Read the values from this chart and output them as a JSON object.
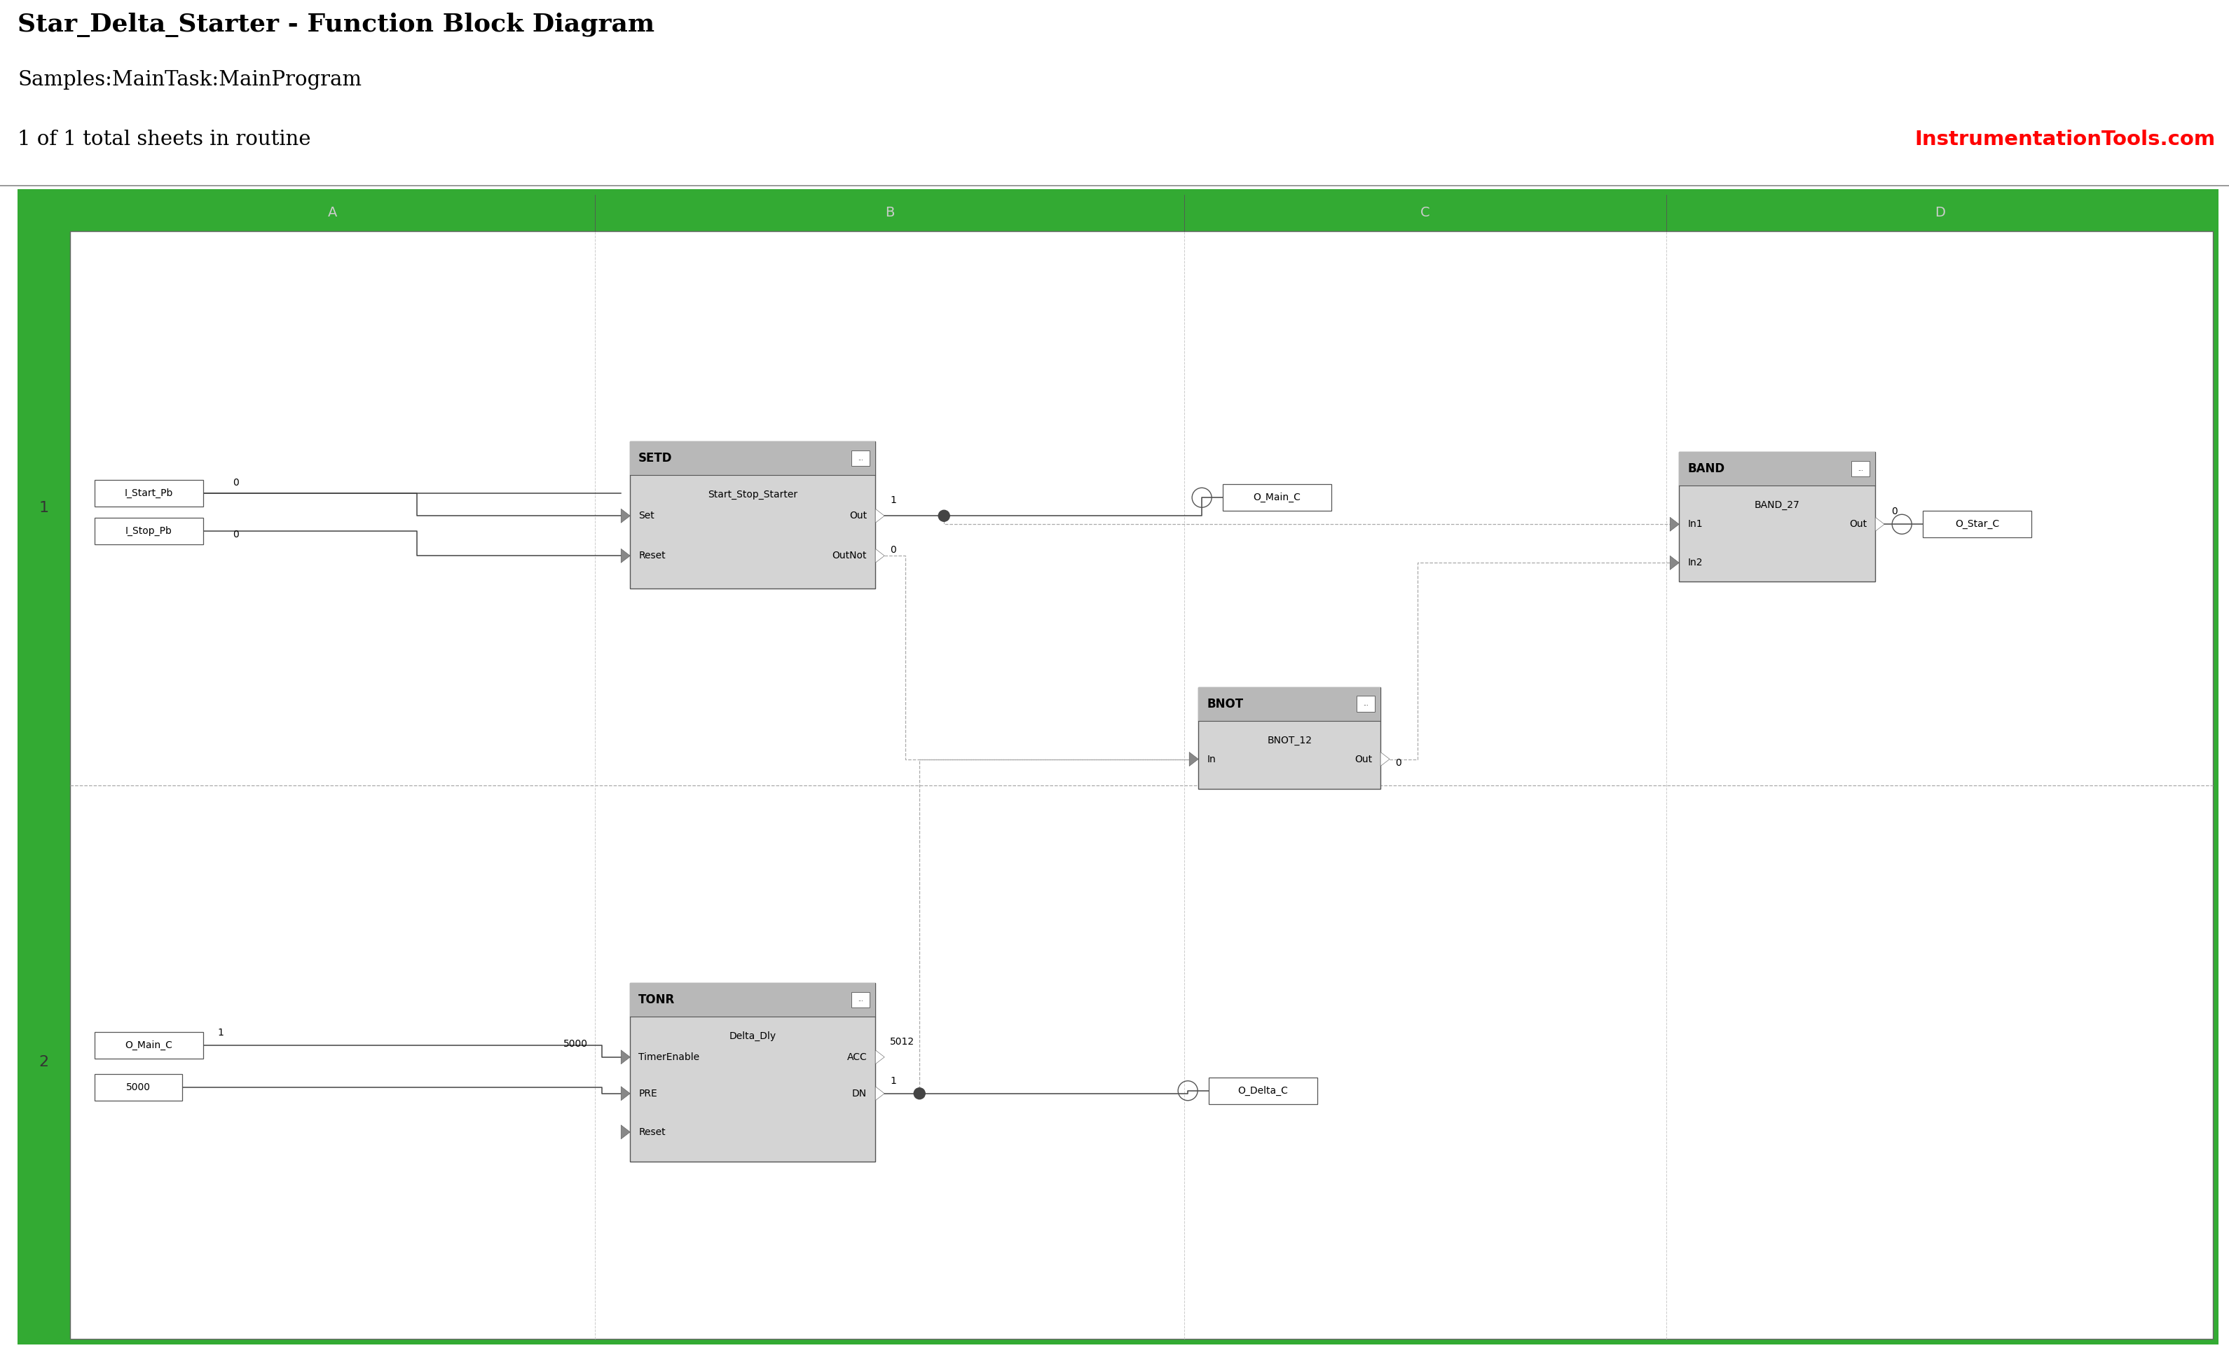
{
  "title": "Star_Delta_Starter - Function Block Diagram",
  "subtitle1": "Samples:MainTask:MainProgram",
  "subtitle2": "1 of 1 total sheets in routine",
  "watermark": "InstrumentationTools.com",
  "bg_color": "#ffffff",
  "green_color": "#33aa33",
  "block_fill": "#d4d4d4",
  "header_fill": "#b8b8b8",
  "wire_color": "#444444",
  "dash_color": "#aaaaaa",
  "text_color": "#000000",
  "col_labels": [
    "A",
    "B",
    "C",
    "D"
  ],
  "row_labels": [
    "1",
    "2"
  ]
}
